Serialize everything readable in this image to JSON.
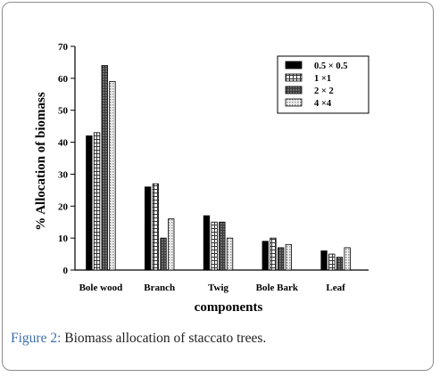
{
  "caption": {
    "label": "Figure 2:",
    "text": " Biomass allocation of staccato trees."
  },
  "chart_data": {
    "type": "bar",
    "categories": [
      "Bole wood",
      "Branch",
      "Twig",
      "Bole Bark",
      "Leaf"
    ],
    "series": [
      {
        "name": "0.5 × 0.5",
        "values": [
          42,
          26,
          17,
          9,
          6
        ],
        "pattern": "solid"
      },
      {
        "name": "1 ×1",
        "values": [
          43,
          27,
          15,
          10,
          5
        ],
        "pattern": "grid"
      },
      {
        "name": "2 × 2",
        "values": [
          64,
          10,
          15,
          7,
          4
        ],
        "pattern": "dense"
      },
      {
        "name": "4 ×4",
        "values": [
          59,
          16,
          10,
          8,
          7
        ],
        "pattern": "dots"
      }
    ],
    "xlabel": "components",
    "ylabel": "% Allocation of biomass",
    "ylim": [
      0,
      70
    ],
    "yticks": [
      0,
      10,
      20,
      30,
      40,
      50,
      60,
      70
    ],
    "legend_position": "top-right",
    "grid": false,
    "colors": {
      "solid": "#000000",
      "grid_line": "#333333",
      "dense": "#555555",
      "dots": "#9a9a9a"
    }
  }
}
